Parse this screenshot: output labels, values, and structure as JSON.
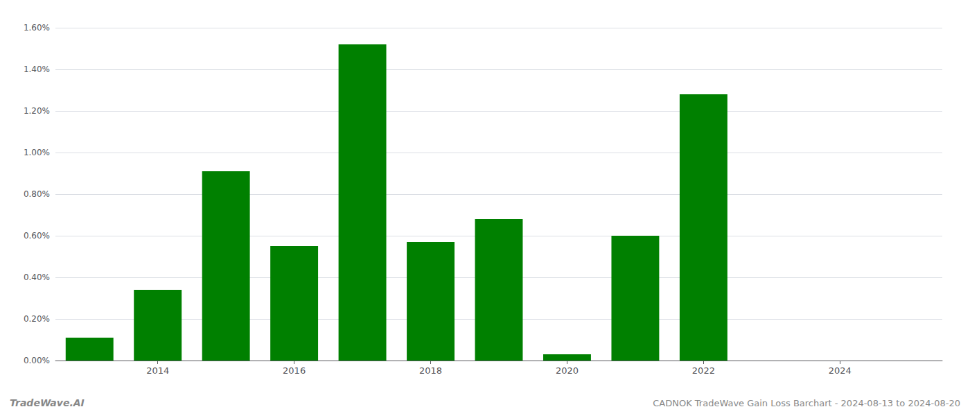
{
  "chart_data": {
    "type": "bar",
    "x": [
      2013,
      2014,
      2015,
      2016,
      2017,
      2018,
      2019,
      2020,
      2021,
      2022,
      2023
    ],
    "values": [
      0.0011,
      0.0034,
      0.0091,
      0.0055,
      0.0152,
      0.0057,
      0.0068,
      0.0003,
      0.006,
      0.0128,
      0.0
    ],
    "color": "#008000",
    "xlim": [
      2012.5,
      2025.5
    ],
    "xticks": [
      2014,
      2016,
      2018,
      2020,
      2022,
      2024
    ],
    "ylim": [
      0,
      0.016
    ],
    "yticks": [
      {
        "value": 0.0,
        "label": "0.00%"
      },
      {
        "value": 0.002,
        "label": "0.20%"
      },
      {
        "value": 0.004,
        "label": "0.40%"
      },
      {
        "value": 0.006,
        "label": "0.60%"
      },
      {
        "value": 0.008,
        "label": "0.80%"
      },
      {
        "value": 0.01,
        "label": "1.00%"
      },
      {
        "value": 0.012,
        "label": "1.20%"
      },
      {
        "value": 0.014,
        "label": "1.40%"
      },
      {
        "value": 0.016,
        "label": "1.60%"
      }
    ],
    "grid": true,
    "annotations": [
      "TradeWave.AI",
      "CADNOK TradeWave Gain Loss Barchart - 2024-08-13 to 2024-08-20"
    ]
  }
}
